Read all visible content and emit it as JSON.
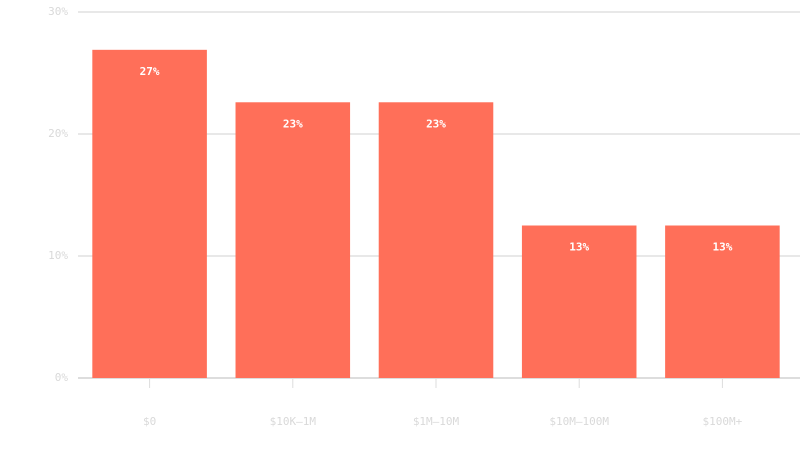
{
  "chart_data": {
    "type": "bar",
    "categories": [
      "$0",
      "$10K–1M",
      "$1M–10M",
      "$10M–100M",
      "$100M+"
    ],
    "values": [
      26.9,
      22.6,
      22.6,
      12.5,
      12.5
    ],
    "value_labels": [
      "27%",
      "23%",
      "23%",
      "13%",
      "13%"
    ],
    "color": "#ff6f59",
    "ylim": [
      0,
      30
    ],
    "yticks": [
      {
        "value": 0,
        "label": "0%"
      },
      {
        "value": 10,
        "label": "10%"
      },
      {
        "value": 20,
        "label": "20%"
      },
      {
        "value": 30,
        "label": "30%"
      }
    ],
    "grid": true
  }
}
